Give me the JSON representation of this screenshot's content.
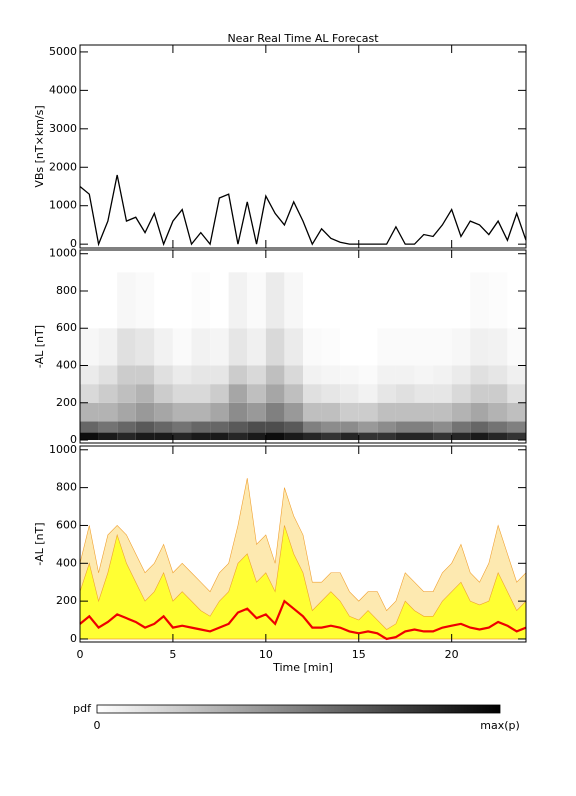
{
  "chart_data": [
    {
      "type": "line",
      "title": "Near Real Time AL Forecast",
      "ylabel": "VBs [nT×km/s]",
      "xlim": [
        0,
        24
      ],
      "xticks": [
        0,
        5,
        10,
        15,
        20
      ],
      "ylim": [
        -100,
        5180
      ],
      "yticks": [
        0,
        1000,
        2000,
        3000,
        4000,
        5000
      ],
      "show_xtick_labels": false,
      "color": "#000000",
      "x": [
        0,
        0.5,
        1,
        1.5,
        2,
        2.5,
        3,
        3.5,
        4,
        4.5,
        5,
        5.5,
        6,
        6.5,
        7,
        7.5,
        8,
        8.5,
        9,
        9.5,
        10,
        10.5,
        11,
        11.5,
        12,
        12.5,
        13,
        13.5,
        14,
        14.5,
        15,
        15.5,
        16,
        16.5,
        17,
        17.5,
        18,
        18.5,
        19,
        19.5,
        20,
        20.5,
        21,
        21.5,
        22,
        22.5,
        23,
        23.5,
        24
      ],
      "values": [
        1500,
        1300,
        0,
        600,
        1800,
        600,
        700,
        300,
        800,
        0,
        600,
        900,
        0,
        300,
        0,
        1200,
        1300,
        0,
        1100,
        0,
        1250,
        800,
        500,
        1100,
        600,
        0,
        400,
        150,
        50,
        0,
        0,
        0,
        0,
        0,
        450,
        0,
        0,
        250,
        200,
        500,
        900,
        200,
        600,
        500,
        250,
        600,
        100,
        800,
        100
      ]
    },
    {
      "type": "heatmap",
      "ylabel": "-AL [nT]",
      "xlim": [
        0,
        24
      ],
      "xticks": [
        0,
        5,
        10,
        15,
        20
      ],
      "ylim": [
        -16,
        1020
      ],
      "yticks": [
        0,
        200,
        400,
        600,
        800,
        1000
      ],
      "show_xtick_labels": false,
      "colormap": [
        "#ffffff",
        "#000000"
      ],
      "x_edges": [
        0,
        1,
        2,
        3,
        4,
        5,
        6,
        7,
        8,
        9,
        10,
        11,
        12,
        13,
        14,
        15,
        16,
        17,
        18,
        19,
        20,
        21,
        22,
        23,
        24
      ],
      "y_edges": [
        0,
        40,
        100,
        200,
        300,
        400,
        600,
        900
      ],
      "z": [
        [
          0.95,
          0.9,
          0.85,
          0.9,
          0.9,
          0.85,
          0.9,
          0.9,
          0.85,
          0.9,
          0.95,
          0.9,
          0.85,
          0.8,
          0.85,
          0.8,
          0.8,
          0.85,
          0.85,
          0.8,
          0.85,
          0.9,
          0.85,
          0.8
        ],
        [
          0.6,
          0.55,
          0.6,
          0.65,
          0.6,
          0.55,
          0.6,
          0.6,
          0.65,
          0.7,
          0.7,
          0.65,
          0.5,
          0.45,
          0.45,
          0.4,
          0.45,
          0.5,
          0.5,
          0.45,
          0.55,
          0.6,
          0.55,
          0.5
        ],
        [
          0.3,
          0.3,
          0.35,
          0.4,
          0.35,
          0.3,
          0.3,
          0.35,
          0.45,
          0.4,
          0.5,
          0.4,
          0.25,
          0.25,
          0.2,
          0.2,
          0.25,
          0.25,
          0.25,
          0.25,
          0.3,
          0.35,
          0.3,
          0.25
        ],
        [
          0.15,
          0.2,
          0.25,
          0.3,
          0.2,
          0.15,
          0.15,
          0.2,
          0.35,
          0.25,
          0.35,
          0.25,
          0.12,
          0.1,
          0.08,
          0.05,
          0.1,
          0.12,
          0.1,
          0.1,
          0.15,
          0.2,
          0.2,
          0.12
        ],
        [
          0.08,
          0.12,
          0.2,
          0.2,
          0.12,
          0.08,
          0.1,
          0.1,
          0.2,
          0.15,
          0.25,
          0.15,
          0.05,
          0.04,
          0.03,
          0.02,
          0.05,
          0.05,
          0.04,
          0.05,
          0.08,
          0.12,
          0.1,
          0.06
        ],
        [
          0.03,
          0.05,
          0.12,
          0.1,
          0.05,
          0.02,
          0.05,
          0.04,
          0.1,
          0.06,
          0.15,
          0.08,
          0.02,
          0.01,
          0,
          0,
          0.02,
          0.02,
          0.02,
          0.02,
          0.03,
          0.06,
          0.05,
          0.02
        ],
        [
          0,
          0,
          0.03,
          0.02,
          0,
          0,
          0.01,
          0,
          0.05,
          0.02,
          0.08,
          0.03,
          0,
          0,
          0,
          0,
          0,
          0,
          0,
          0,
          0,
          0.02,
          0.01,
          0
        ]
      ],
      "colorbar": {
        "label": "pdf",
        "min_label": "0",
        "max_label": "max(p)"
      }
    },
    {
      "type": "area",
      "ylabel": "-AL [nT]",
      "xlabel": "Time [min]",
      "xlim": [
        0,
        24
      ],
      "xticks": [
        0,
        5,
        10,
        15,
        20
      ],
      "ylim": [
        -16,
        1020
      ],
      "yticks": [
        0,
        200,
        400,
        600,
        800,
        1000
      ],
      "show_xtick_labels": true,
      "x": [
        0,
        0.5,
        1,
        1.5,
        2,
        2.5,
        3,
        3.5,
        4,
        4.5,
        5,
        5.5,
        6,
        6.5,
        7,
        7.5,
        8,
        8.5,
        9,
        9.5,
        10,
        10.5,
        11,
        11.5,
        12,
        12.5,
        13,
        13.5,
        14,
        14.5,
        15,
        15.5,
        16,
        16.5,
        17,
        17.5,
        18,
        18.5,
        19,
        19.5,
        20,
        20.5,
        21,
        21.5,
        22,
        22.5,
        23,
        23.5,
        24
      ],
      "series": [
        {
          "color": "#fde9b0",
          "style": "area",
          "values": [
            400,
            600,
            350,
            550,
            600,
            550,
            450,
            350,
            400,
            500,
            350,
            400,
            350,
            300,
            250,
            350,
            400,
            600,
            850,
            500,
            550,
            400,
            800,
            650,
            550,
            300,
            300,
            350,
            350,
            250,
            200,
            250,
            250,
            150,
            200,
            350,
            300,
            250,
            250,
            350,
            400,
            500,
            350,
            300,
            400,
            600,
            450,
            300,
            350
          ]
        },
        {
          "color": "#ffff33",
          "style": "area",
          "values": [
            250,
            400,
            200,
            350,
            550,
            400,
            300,
            200,
            250,
            350,
            200,
            250,
            200,
            150,
            120,
            200,
            250,
            400,
            450,
            300,
            350,
            250,
            600,
            450,
            350,
            150,
            200,
            250,
            200,
            120,
            100,
            150,
            100,
            50,
            80,
            200,
            150,
            120,
            120,
            200,
            250,
            300,
            200,
            180,
            200,
            350,
            250,
            150,
            200
          ]
        },
        {
          "color": "#ee0000",
          "style": "line",
          "values": [
            80,
            120,
            60,
            90,
            130,
            110,
            90,
            60,
            80,
            120,
            60,
            70,
            60,
            50,
            40,
            60,
            80,
            140,
            160,
            110,
            130,
            80,
            200,
            160,
            120,
            60,
            60,
            70,
            60,
            40,
            30,
            40,
            30,
            0,
            10,
            40,
            50,
            40,
            40,
            60,
            70,
            80,
            60,
            50,
            60,
            90,
            70,
            40,
            60
          ]
        }
      ]
    }
  ]
}
